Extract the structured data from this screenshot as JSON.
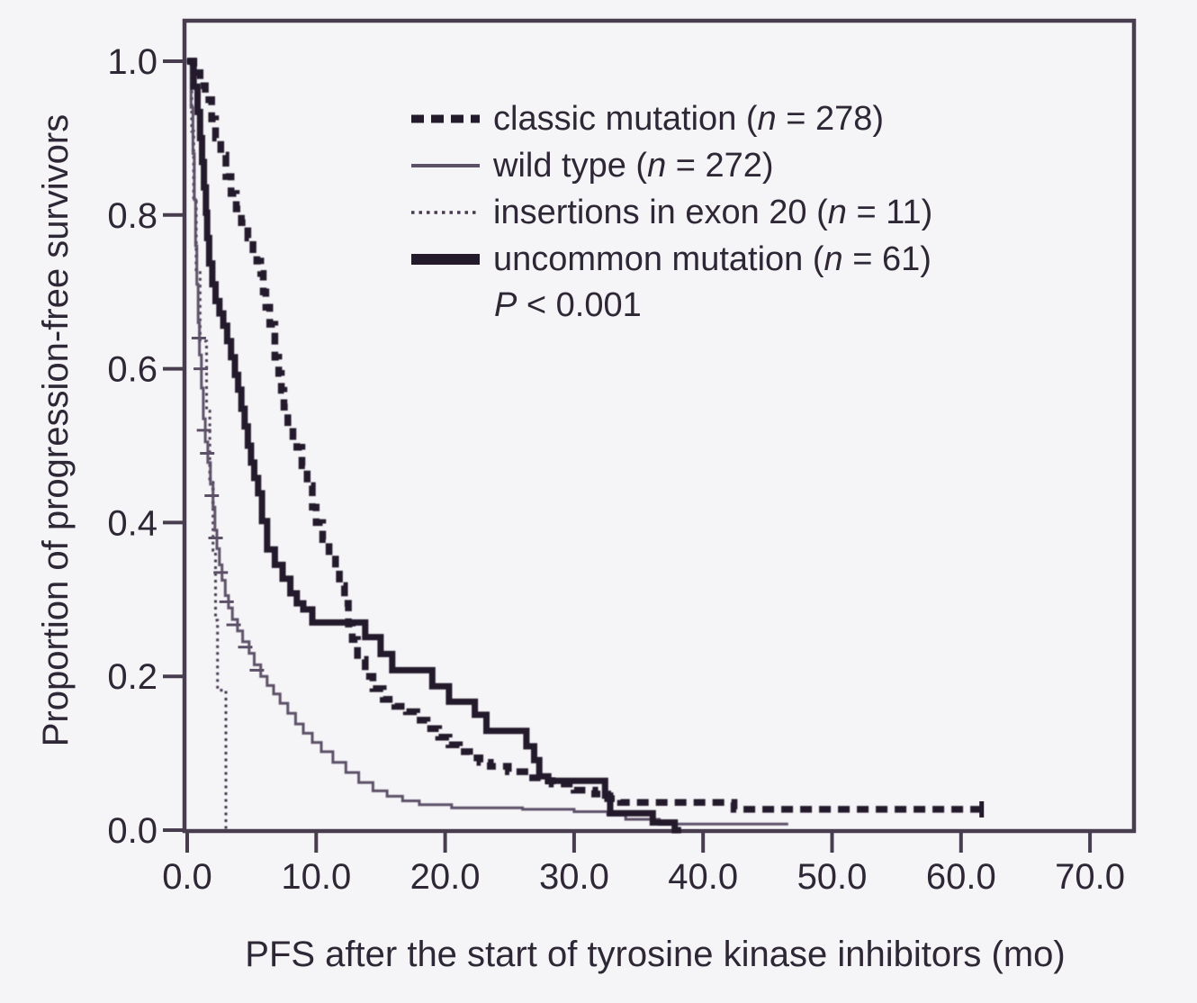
{
  "figure": {
    "kind": "kaplan-meier survival plot"
  },
  "colors": {
    "background": "#f5f4f7",
    "axis": "#473d4e",
    "text": "#2e2735",
    "curve_dark": "#231a2c",
    "wild_gray": "#5d5168",
    "dotted_dark": "#453a4f"
  },
  "legend": {
    "items": [
      {
        "label": "classic mutation",
        "n_var": "n",
        "n_value": "278",
        "display": "classic mutation (n = 278)"
      },
      {
        "label": "wild type",
        "n_var": "n",
        "n_value": "272",
        "display": "wild type (n = 272)"
      },
      {
        "label": "insertions in exon 20",
        "n_var": "n",
        "n_value": "11",
        "display": "insertions in exon 20 (n = 11)"
      },
      {
        "label": "uncommon mutation",
        "n_var": "n",
        "n_value": "61",
        "display": "uncommon mutation (n = 61)"
      }
    ],
    "p_stat": {
      "var": "P",
      "rest": " < 0.001",
      "display": "P < 0.001"
    }
  },
  "chart_data": {
    "type": "line",
    "subtype": "kaplan-meier-step",
    "title": "",
    "xlabel": "PFS after the start of tyrosine kinase inhibitors (mo)",
    "ylabel": "Proportion of progression-free survivors",
    "xlim": [
      0,
      73.5
    ],
    "ylim": [
      0,
      1.05
    ],
    "grid": false,
    "legend_position": "upper-right-inside",
    "x_tick_values": [
      0,
      10,
      20,
      30,
      40,
      50,
      60,
      70
    ],
    "x_tick_labels": [
      "0.0",
      "10.0",
      "20.0",
      "30.0",
      "40.0",
      "50.0",
      "60.0",
      "70.0"
    ],
    "y_tick_values": [
      0,
      0.2,
      0.4,
      0.6,
      0.8,
      1.0
    ],
    "y_tick_labels": [
      "0.0",
      "0.2",
      "0.4",
      "0.6",
      "0.8",
      "1.0"
    ],
    "annotation": "P < 0.001",
    "series": [
      {
        "name": "classic mutation",
        "n": 278,
        "style": "dashed-thick",
        "color": "#231a2c",
        "width": 7.5,
        "dash": "13 8",
        "end_t": 62.0,
        "mark_dir": "v",
        "censor_marks": [
          [
            61.6,
            0.027
          ]
        ],
        "points": [
          [
            0,
            1.0
          ],
          [
            0.5,
            0.985
          ],
          [
            1.0,
            0.968
          ],
          [
            1.4,
            0.95
          ],
          [
            1.9,
            0.925
          ],
          [
            2.2,
            0.9
          ],
          [
            2.6,
            0.878
          ],
          [
            3.0,
            0.85
          ],
          [
            3.4,
            0.828
          ],
          [
            3.8,
            0.808
          ],
          [
            4.2,
            0.79
          ],
          [
            4.7,
            0.77
          ],
          [
            5.1,
            0.755
          ],
          [
            5.4,
            0.74
          ],
          [
            5.7,
            0.724
          ],
          [
            5.9,
            0.7
          ],
          [
            6.1,
            0.68
          ],
          [
            6.4,
            0.658
          ],
          [
            6.8,
            0.615
          ],
          [
            7.1,
            0.594
          ],
          [
            7.3,
            0.572
          ],
          [
            7.5,
            0.55
          ],
          [
            7.8,
            0.53
          ],
          [
            8.2,
            0.512
          ],
          [
            8.5,
            0.498
          ],
          [
            8.9,
            0.474
          ],
          [
            9.3,
            0.448
          ],
          [
            9.7,
            0.42
          ],
          [
            10.0,
            0.4
          ],
          [
            10.5,
            0.378
          ],
          [
            11.0,
            0.357
          ],
          [
            11.5,
            0.338
          ],
          [
            11.8,
            0.318
          ],
          [
            12.2,
            0.295
          ],
          [
            12.5,
            0.268
          ],
          [
            12.8,
            0.248
          ],
          [
            13.2,
            0.222
          ],
          [
            13.8,
            0.2
          ],
          [
            14.4,
            0.184
          ],
          [
            15.2,
            0.17
          ],
          [
            16.1,
            0.161
          ],
          [
            17.0,
            0.154
          ],
          [
            17.8,
            0.143
          ],
          [
            18.6,
            0.132
          ],
          [
            19.5,
            0.121
          ],
          [
            20.3,
            0.111
          ],
          [
            21.1,
            0.102
          ],
          [
            21.9,
            0.094
          ],
          [
            22.7,
            0.088
          ],
          [
            23.5,
            0.083
          ],
          [
            24.9,
            0.076
          ],
          [
            26.5,
            0.068
          ],
          [
            27.4,
            0.064
          ],
          [
            28.3,
            0.06
          ],
          [
            30.0,
            0.052
          ],
          [
            31.6,
            0.047
          ],
          [
            32.6,
            0.041
          ],
          [
            33.6,
            0.036
          ],
          [
            42.4,
            0.027
          ]
        ]
      },
      {
        "name": "wild type",
        "n": 272,
        "style": "solid-thin",
        "color": "#5d5168",
        "width": 3,
        "dash": null,
        "end_t": 46.6,
        "mark_dir": "h",
        "censor_marks": [
          [
            0.9,
            0.64
          ],
          [
            1.05,
            0.6
          ],
          [
            1.3,
            0.52
          ],
          [
            1.55,
            0.49
          ],
          [
            1.9,
            0.435
          ],
          [
            2.2,
            0.38
          ],
          [
            2.6,
            0.335
          ],
          [
            3.05,
            0.297
          ],
          [
            3.6,
            0.267
          ],
          [
            4.5,
            0.238
          ],
          [
            5.4,
            0.208
          ]
        ],
        "points": [
          [
            0,
            1.0
          ],
          [
            0.3,
            0.94
          ],
          [
            0.45,
            0.88
          ],
          [
            0.55,
            0.82
          ],
          [
            0.65,
            0.76
          ],
          [
            0.75,
            0.71
          ],
          [
            0.85,
            0.66
          ],
          [
            0.95,
            0.618
          ],
          [
            1.1,
            0.575
          ],
          [
            1.25,
            0.535
          ],
          [
            1.4,
            0.505
          ],
          [
            1.6,
            0.478
          ],
          [
            1.8,
            0.45
          ],
          [
            2.0,
            0.42
          ],
          [
            2.15,
            0.39
          ],
          [
            2.3,
            0.366
          ],
          [
            2.5,
            0.345
          ],
          [
            2.7,
            0.325
          ],
          [
            2.95,
            0.305
          ],
          [
            3.2,
            0.289
          ],
          [
            3.5,
            0.274
          ],
          [
            3.9,
            0.259
          ],
          [
            4.3,
            0.245
          ],
          [
            4.8,
            0.23
          ],
          [
            5.2,
            0.215
          ],
          [
            5.7,
            0.2
          ],
          [
            6.2,
            0.188
          ],
          [
            6.7,
            0.177
          ],
          [
            7.2,
            0.165
          ],
          [
            7.8,
            0.152
          ],
          [
            8.4,
            0.138
          ],
          [
            9.0,
            0.126
          ],
          [
            9.7,
            0.114
          ],
          [
            10.4,
            0.102
          ],
          [
            11.3,
            0.088
          ],
          [
            12.3,
            0.075
          ],
          [
            13.3,
            0.062
          ],
          [
            14.4,
            0.051
          ],
          [
            15.5,
            0.044
          ],
          [
            16.7,
            0.038
          ],
          [
            18.0,
            0.033
          ],
          [
            20.5,
            0.029
          ],
          [
            26.0,
            0.027
          ],
          [
            30.0,
            0.024
          ],
          [
            32.6,
            0.02
          ],
          [
            34.0,
            0.014
          ],
          [
            36.6,
            0.008
          ]
        ]
      },
      {
        "name": "insertions in exon 20",
        "n": 11,
        "style": "dotted",
        "color": "#453a4f",
        "width": 3,
        "dash": "3 4.5",
        "end_t": 3.05,
        "mark_dir": "h",
        "censor_marks": [],
        "points": [
          [
            0,
            1.0
          ],
          [
            0.35,
            0.909
          ],
          [
            0.5,
            0.818
          ],
          [
            0.7,
            0.727
          ],
          [
            1.0,
            0.636
          ],
          [
            1.5,
            0.545
          ],
          [
            1.75,
            0.455
          ],
          [
            2.0,
            0.364
          ],
          [
            2.2,
            0.273
          ],
          [
            2.35,
            0.182
          ],
          [
            3.0,
            0.0
          ]
        ]
      },
      {
        "name": "uncommon mutation",
        "n": 61,
        "style": "solid-thick",
        "color": "#231a2c",
        "width": 7,
        "dash": null,
        "end_t": 38.3,
        "mark_dir": "v",
        "censor_marks": [],
        "points": [
          [
            0,
            1.0
          ],
          [
            0.5,
            0.967
          ],
          [
            0.8,
            0.934
          ],
          [
            1.0,
            0.9
          ],
          [
            1.15,
            0.869
          ],
          [
            1.3,
            0.836
          ],
          [
            1.45,
            0.803
          ],
          [
            1.55,
            0.77
          ],
          [
            1.7,
            0.737
          ],
          [
            1.95,
            0.71
          ],
          [
            2.2,
            0.688
          ],
          [
            2.5,
            0.672
          ],
          [
            2.8,
            0.656
          ],
          [
            3.1,
            0.636
          ],
          [
            3.4,
            0.615
          ],
          [
            3.7,
            0.592
          ],
          [
            3.95,
            0.573
          ],
          [
            4.2,
            0.548
          ],
          [
            4.45,
            0.525
          ],
          [
            4.7,
            0.5
          ],
          [
            4.95,
            0.478
          ],
          [
            5.2,
            0.458
          ],
          [
            5.5,
            0.438
          ],
          [
            5.8,
            0.402
          ],
          [
            6.2,
            0.365
          ],
          [
            6.8,
            0.345
          ],
          [
            7.4,
            0.327
          ],
          [
            8.0,
            0.308
          ],
          [
            8.5,
            0.295
          ],
          [
            9.0,
            0.287
          ],
          [
            9.7,
            0.27
          ],
          [
            13.8,
            0.251
          ],
          [
            15.0,
            0.229
          ],
          [
            15.9,
            0.208
          ],
          [
            19.0,
            0.187
          ],
          [
            20.3,
            0.167
          ],
          [
            22.3,
            0.15
          ],
          [
            23.2,
            0.129
          ],
          [
            26.3,
            0.109
          ],
          [
            26.9,
            0.091
          ],
          [
            27.3,
            0.07
          ],
          [
            28.0,
            0.064
          ],
          [
            32.4,
            0.045
          ],
          [
            32.8,
            0.022
          ],
          [
            36.1,
            0.01
          ],
          [
            37.8,
            0.0
          ]
        ]
      }
    ]
  }
}
